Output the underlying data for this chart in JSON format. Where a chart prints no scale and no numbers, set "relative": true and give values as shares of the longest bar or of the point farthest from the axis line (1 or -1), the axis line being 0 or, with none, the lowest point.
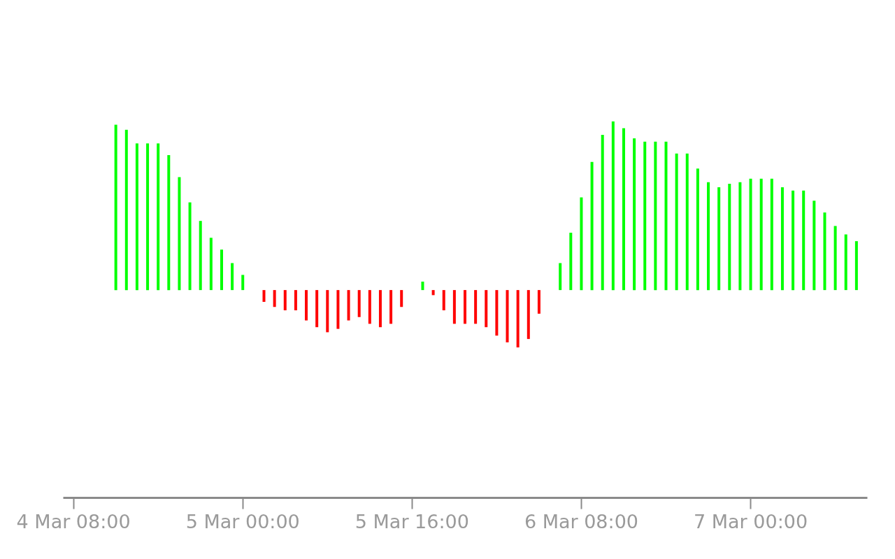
{
  "chart_data": {
    "type": "bar",
    "relative": true,
    "categories": [
      "4 Mar 08:00",
      null,
      null,
      null,
      null,
      null,
      null,
      null,
      null,
      null,
      null,
      null,
      null,
      null,
      null,
      null,
      "5 Mar 00:00",
      null,
      null,
      null,
      null,
      null,
      null,
      null,
      null,
      null,
      null,
      null,
      null,
      null,
      null,
      null,
      "5 Mar 16:00",
      null,
      null,
      null,
      null,
      null,
      null,
      null,
      null,
      null,
      null,
      null,
      null,
      null,
      null,
      null,
      "6 Mar 08:00",
      null,
      null,
      null,
      null,
      null,
      null,
      null,
      null,
      null,
      null,
      null,
      null,
      null,
      null,
      null,
      "7 Mar 00:00",
      null,
      null,
      null,
      null,
      null,
      null,
      null,
      null,
      null,
      null
    ],
    "values": [
      null,
      null,
      null,
      null,
      0.98,
      0.95,
      0.87,
      0.87,
      0.87,
      0.8,
      0.67,
      0.52,
      0.41,
      0.31,
      0.24,
      0.16,
      0.09,
      0,
      -0.07,
      -0.1,
      -0.12,
      -0.12,
      -0.18,
      -0.22,
      -0.25,
      -0.23,
      -0.18,
      -0.16,
      -0.2,
      -0.22,
      -0.2,
      -0.1,
      0,
      0.05,
      -0.03,
      -0.12,
      -0.2,
      -0.2,
      -0.2,
      -0.22,
      -0.27,
      -0.31,
      -0.34,
      -0.29,
      -0.14,
      0,
      0.16,
      0.34,
      0.55,
      0.76,
      0.92,
      1,
      0.96,
      0.9,
      0.88,
      0.88,
      0.88,
      0.81,
      0.81,
      0.72,
      0.64,
      0.61,
      0.63,
      0.64,
      0.66,
      0.66,
      0.66,
      0.61,
      0.59,
      0.59,
      0.53,
      0.46,
      0.38,
      0.33,
      0.29
    ],
    "colors": [
      null,
      null,
      null,
      null,
      "#00ff00",
      "#00ff00",
      "#00ff00",
      "#00ff00",
      "#00ff00",
      "#00ff00",
      "#00ff00",
      "#00ff00",
      "#00ff00",
      "#00ff00",
      "#00ff00",
      "#00ff00",
      "#00ff00",
      "#00ff00",
      "#ff0000",
      "#ff0000",
      "#ff0000",
      "#ff0000",
      "#ff0000",
      "#ff0000",
      "#ff0000",
      "#ff0000",
      "#ff0000",
      "#ff0000",
      "#ff0000",
      "#ff0000",
      "#ff0000",
      "#ff0000",
      "#00ff00",
      "#00ff00",
      "#ff0000",
      "#ff0000",
      "#ff0000",
      "#ff0000",
      "#ff0000",
      "#ff0000",
      "#ff0000",
      "#ff0000",
      "#ff0000",
      "#ff0000",
      "#ff0000",
      "#00ff00",
      "#00ff00",
      "#00ff00",
      "#00ff00",
      "#00ff00",
      "#00ff00",
      "#00ff00",
      "#00ff00",
      "#00ff00",
      "#00ff00",
      "#00ff00",
      "#00ff00",
      "#00ff00",
      "#00ff00",
      "#00ff00",
      "#00ff00",
      "#00ff00",
      "#00ff00",
      "#00ff00",
      "#00ff00",
      "#00ff00",
      "#00ff00",
      "#00ff00",
      "#00ff00",
      "#00ff00",
      "#00ff00",
      "#00ff00",
      "#00ff00",
      "#00ff00",
      "#00ff00"
    ]
  }
}
